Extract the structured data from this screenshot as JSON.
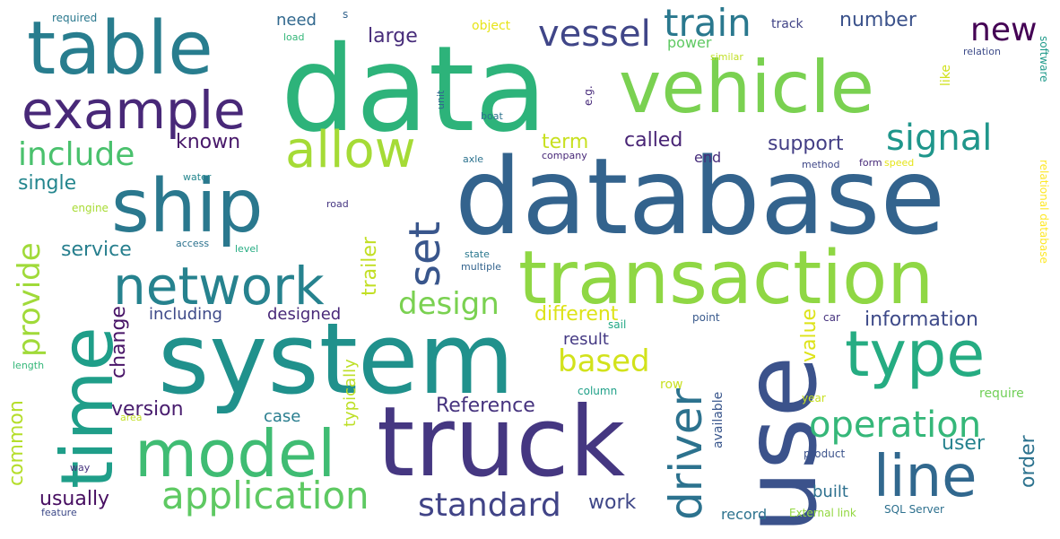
{
  "words": [
    {
      "text": "data",
      "color": "#2db37a"
    },
    {
      "text": "database",
      "color": "#33638d"
    },
    {
      "text": "system",
      "color": "#20918c"
    },
    {
      "text": "use",
      "color": "#3b528b"
    },
    {
      "text": "truck",
      "color": "#453781"
    },
    {
      "text": "vehicle",
      "color": "#7ad151"
    },
    {
      "text": "transaction",
      "color": "#8fd744"
    },
    {
      "text": "table",
      "color": "#287d8e"
    },
    {
      "text": "ship",
      "color": "#2a788e"
    },
    {
      "text": "time",
      "color": "#1f9e89"
    },
    {
      "text": "model",
      "color": "#3fbc73"
    },
    {
      "text": "example",
      "color": "#482878"
    },
    {
      "text": "type",
      "color": "#25ac82"
    },
    {
      "text": "network",
      "color": "#26828e"
    },
    {
      "text": "line",
      "color": "#31688e"
    },
    {
      "text": "allow",
      "color": "#a5db36"
    },
    {
      "text": "driver",
      "color": "#2c728e"
    },
    {
      "text": "application",
      "color": "#5ec962"
    },
    {
      "text": "operation",
      "color": "#35b779"
    },
    {
      "text": "signal",
      "color": "#1f968b"
    },
    {
      "text": "set",
      "color": "#39568c"
    },
    {
      "text": "vessel",
      "color": "#404688"
    },
    {
      "text": "train",
      "color": "#2a788e"
    },
    {
      "text": "new",
      "color": "#440154"
    },
    {
      "text": "include",
      "color": "#4ac16d"
    },
    {
      "text": "standard",
      "color": "#414487"
    },
    {
      "text": "design",
      "color": "#7ad151"
    },
    {
      "text": "provide",
      "color": "#a0da39"
    },
    {
      "text": "based",
      "color": "#d2e21b"
    },
    {
      "text": "information",
      "color": "#3e4a89"
    },
    {
      "text": "Reference",
      "color": "#46337e"
    },
    {
      "text": "number",
      "color": "#3b528b"
    },
    {
      "text": "support",
      "color": "#433e85"
    },
    {
      "text": "called",
      "color": "#482475"
    },
    {
      "text": "known",
      "color": "#48186a"
    },
    {
      "text": "large",
      "color": "#472c7a"
    },
    {
      "text": "service",
      "color": "#277f8e"
    },
    {
      "text": "single",
      "color": "#24868e"
    },
    {
      "text": "version",
      "color": "#481c6e"
    },
    {
      "text": "work",
      "color": "#3f4788"
    },
    {
      "text": "user",
      "color": "#26828e"
    },
    {
      "text": "usually",
      "color": "#470e61"
    },
    {
      "text": "different",
      "color": "#dde318"
    },
    {
      "text": "term",
      "color": "#c8e020"
    },
    {
      "text": "common",
      "color": "#b5de2b"
    },
    {
      "text": "trailer",
      "color": "#c2df23"
    },
    {
      "text": "change",
      "color": "#481467"
    },
    {
      "text": "value",
      "color": "#dde318"
    },
    {
      "text": "order",
      "color": "#2c728e"
    },
    {
      "text": "including",
      "color": "#3e4a89"
    },
    {
      "text": "designed",
      "color": "#482878"
    },
    {
      "text": "need",
      "color": "#31688e"
    },
    {
      "text": "typically",
      "color": "#bddf26"
    },
    {
      "text": "case",
      "color": "#287d8e"
    },
    {
      "text": "result",
      "color": "#443983"
    },
    {
      "text": "built",
      "color": "#2d708e"
    },
    {
      "text": "end",
      "color": "#472d7b"
    },
    {
      "text": "record",
      "color": "#2c728e"
    },
    {
      "text": "power",
      "color": "#5ec962"
    },
    {
      "text": "track",
      "color": "#414487"
    },
    {
      "text": "object",
      "color": "#e7e419"
    },
    {
      "text": "like",
      "color": "#d0e11c"
    },
    {
      "text": "available",
      "color": "#39568c"
    },
    {
      "text": "row",
      "color": "#c8e020"
    },
    {
      "text": "column",
      "color": "#1fa088"
    },
    {
      "text": "require",
      "color": "#70cf57"
    },
    {
      "text": "year",
      "color": "#c8e020"
    },
    {
      "text": "point",
      "color": "#38598c"
    },
    {
      "text": "car",
      "color": "#46337e"
    },
    {
      "text": "sail",
      "color": "#22a884"
    },
    {
      "text": "product",
      "color": "#3b528b"
    },
    {
      "text": "External link",
      "color": "#93d741"
    },
    {
      "text": "SQL Server",
      "color": "#2d708e"
    },
    {
      "text": "software",
      "color": "#1f9a8a"
    },
    {
      "text": "relation",
      "color": "#3e4c8a"
    },
    {
      "text": "relational database",
      "color": "#fde725"
    },
    {
      "text": "method",
      "color": "#3f4788"
    },
    {
      "text": "form",
      "color": "#472a7a"
    },
    {
      "text": "speed",
      "color": "#e5e419"
    },
    {
      "text": "company",
      "color": "#482878"
    },
    {
      "text": "axle",
      "color": "#2c728e"
    },
    {
      "text": "state",
      "color": "#2a788e"
    },
    {
      "text": "multiple",
      "color": "#33638d"
    },
    {
      "text": "access",
      "color": "#2c728e"
    },
    {
      "text": "level",
      "color": "#25ac82"
    },
    {
      "text": "engine",
      "color": "#a8db34"
    },
    {
      "text": "water",
      "color": "#24868e"
    },
    {
      "text": "road",
      "color": "#453581"
    },
    {
      "text": "unit",
      "color": "#31688e"
    },
    {
      "text": "boat",
      "color": "#2c728e"
    },
    {
      "text": "e.g.",
      "color": "#472a7a"
    },
    {
      "text": "similar",
      "color": "#c0df25"
    },
    {
      "text": "required",
      "color": "#2a788e"
    },
    {
      "text": "load",
      "color": "#35b779"
    },
    {
      "text": "s",
      "color": "#33638d"
    },
    {
      "text": "length",
      "color": "#35b779"
    },
    {
      "text": "area",
      "color": "#c2df23"
    },
    {
      "text": "way",
      "color": "#46337e"
    },
    {
      "text": "feature",
      "color": "#3e4a89"
    }
  ]
}
